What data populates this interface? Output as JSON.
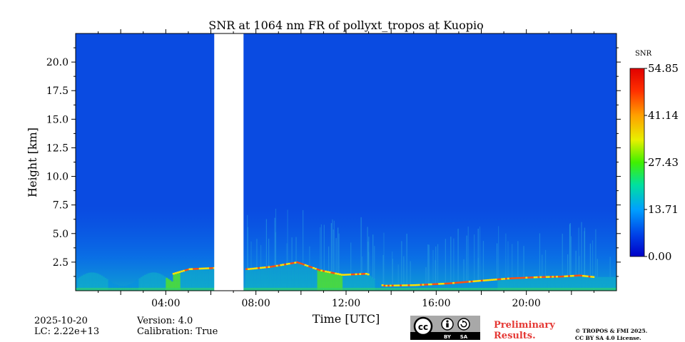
{
  "chart_data": {
    "type": "heatmap",
    "title": "SNR at 1064 nm FR of pollyxt_tropos at Kuopio",
    "xlabel": "Time [UTC]",
    "ylabel": "Height [km]",
    "xlim_hours": [
      0,
      24
    ],
    "ylim_km": [
      0,
      22.5
    ],
    "x_ticks": [
      {
        "hour": 4,
        "label": "04:00"
      },
      {
        "hour": 8,
        "label": "08:00"
      },
      {
        "hour": 12,
        "label": "12:00"
      },
      {
        "hour": 16,
        "label": "16:00"
      },
      {
        "hour": 20,
        "label": "20:00"
      }
    ],
    "y_ticks": [
      {
        "km": 2.5,
        "label": "2.5"
      },
      {
        "km": 5.0,
        "label": "5.0"
      },
      {
        "km": 7.5,
        "label": "7.5"
      },
      {
        "km": 10.0,
        "label": "10.0"
      },
      {
        "km": 12.5,
        "label": "12.5"
      },
      {
        "km": 15.0,
        "label": "15.0"
      },
      {
        "km": 17.5,
        "label": "17.5"
      },
      {
        "km": 20.0,
        "label": "20.0"
      }
    ],
    "no_data_interval_hours": [
      6.15,
      7.45
    ],
    "boundary_layer_top_km": [
      {
        "hour": 4.3,
        "km": 1.5
      },
      {
        "hour": 5.0,
        "km": 1.9
      },
      {
        "hour": 6.1,
        "km": 2.0
      },
      {
        "hour": 7.6,
        "km": 1.9
      },
      {
        "hour": 8.6,
        "km": 2.1
      },
      {
        "hour": 9.8,
        "km": 2.5
      },
      {
        "hour": 10.8,
        "km": 1.8
      },
      {
        "hour": 11.8,
        "km": 1.4
      },
      {
        "hour": 12.9,
        "km": 1.5
      },
      {
        "hour": 13.6,
        "km": 0.45
      },
      {
        "hour": 15.0,
        "km": 0.5
      },
      {
        "hour": 16.5,
        "km": 0.65
      },
      {
        "hour": 18.0,
        "km": 0.9
      },
      {
        "hour": 19.3,
        "km": 1.1
      },
      {
        "hour": 20.5,
        "km": 1.2
      },
      {
        "hour": 21.5,
        "km": 1.25
      },
      {
        "hour": 22.3,
        "km": 1.35
      },
      {
        "hour": 23.0,
        "km": 1.2
      }
    ],
    "colorbar": {
      "label": "SNR",
      "min": 0.0,
      "max": 54.85,
      "ticks": [
        "0.00",
        "13.71",
        "27.43",
        "41.14",
        "54.85"
      ],
      "colormap": [
        "#0000c8",
        "#0044e8",
        "#00a0ff",
        "#00e0a0",
        "#40f000",
        "#e8f000",
        "#ffa000",
        "#ff3000",
        "#e00000"
      ]
    },
    "background_color": "#0a4be1"
  },
  "footer": {
    "date": "2025-10-20",
    "lc": "LC: 2.22e+13",
    "version": "Version: 4.0",
    "calibration": "Calibration: True",
    "preliminary_line1": "Preliminary",
    "preliminary_line2": "Results.",
    "copyright_line1": "© TROPOS & FMI 2025.",
    "copyright_line2": "CC BY SA 4.0 License.",
    "license_badge": {
      "cc": "cc",
      "by": "BY",
      "sa": "SA"
    }
  }
}
